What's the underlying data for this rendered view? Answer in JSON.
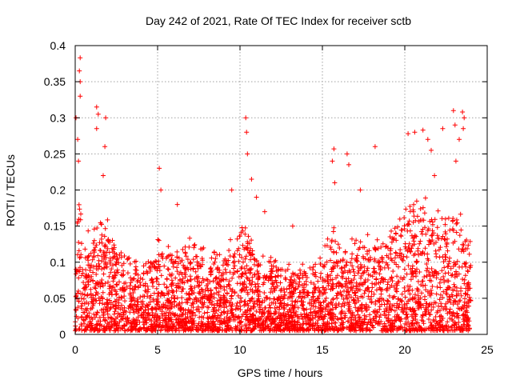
{
  "chart_data": {
    "type": "scatter",
    "title": "Day 242 of 2021, Rate Of TEC Index for receiver sctb",
    "xlabel": "GPS time / hours",
    "ylabel": "ROTI / TECUs",
    "xlim": [
      0,
      25
    ],
    "ylim": [
      0,
      0.4
    ],
    "x_ticks": [
      0,
      5,
      10,
      15,
      20,
      25
    ],
    "x_tick_labels": [
      "0",
      "5",
      "10",
      "15",
      "20",
      "25"
    ],
    "y_ticks": [
      0,
      0.05,
      0.1,
      0.15,
      0.2,
      0.25,
      0.3,
      0.35,
      0.4
    ],
    "y_tick_labels": [
      "0",
      "0.05",
      "0.1",
      "0.15",
      "0.2",
      "0.25",
      "0.3",
      "0.35",
      "0.4"
    ],
    "grid": true,
    "legend": "none",
    "marker": "plus",
    "color": "#ff0000",
    "envelope": {
      "x": [
        0,
        0.25,
        0.5,
        1,
        1.5,
        2,
        3,
        4,
        5,
        6,
        7,
        8,
        9,
        10,
        10.5,
        11,
        12,
        13,
        14,
        15,
        15.5,
        16,
        17,
        18,
        19,
        20,
        21,
        21.5,
        22,
        23,
        23.5,
        24
      ],
      "typical_max": [
        0.12,
        0.2,
        0.15,
        0.12,
        0.16,
        0.14,
        0.1,
        0.09,
        0.12,
        0.11,
        0.13,
        0.1,
        0.11,
        0.14,
        0.15,
        0.11,
        0.1,
        0.09,
        0.09,
        0.1,
        0.14,
        0.12,
        0.12,
        0.13,
        0.13,
        0.17,
        0.18,
        0.17,
        0.15,
        0.16,
        0.15,
        0.12
      ]
    },
    "peaks": [
      {
        "x": 0.3,
        "y": 0.383
      },
      {
        "x": 0.25,
        "y": 0.365
      },
      {
        "x": 0.3,
        "y": 0.35
      },
      {
        "x": 0.3,
        "y": 0.33
      },
      {
        "x": 0.05,
        "y": 0.3
      },
      {
        "x": 0.15,
        "y": 0.27
      },
      {
        "x": 0.2,
        "y": 0.24
      },
      {
        "x": 1.3,
        "y": 0.315
      },
      {
        "x": 1.4,
        "y": 0.305
      },
      {
        "x": 1.3,
        "y": 0.285
      },
      {
        "x": 1.85,
        "y": 0.3
      },
      {
        "x": 1.8,
        "y": 0.26
      },
      {
        "x": 1.7,
        "y": 0.22
      },
      {
        "x": 5.1,
        "y": 0.23
      },
      {
        "x": 5.2,
        "y": 0.2
      },
      {
        "x": 6.2,
        "y": 0.18
      },
      {
        "x": 9.5,
        "y": 0.2
      },
      {
        "x": 10.35,
        "y": 0.3
      },
      {
        "x": 10.4,
        "y": 0.28
      },
      {
        "x": 10.45,
        "y": 0.25
      },
      {
        "x": 10.7,
        "y": 0.215
      },
      {
        "x": 11.0,
        "y": 0.19
      },
      {
        "x": 11.5,
        "y": 0.17
      },
      {
        "x": 13.2,
        "y": 0.15
      },
      {
        "x": 15.7,
        "y": 0.257
      },
      {
        "x": 15.6,
        "y": 0.24
      },
      {
        "x": 15.75,
        "y": 0.21
      },
      {
        "x": 16.5,
        "y": 0.25
      },
      {
        "x": 16.6,
        "y": 0.235
      },
      {
        "x": 17.3,
        "y": 0.2
      },
      {
        "x": 18.2,
        "y": 0.26
      },
      {
        "x": 20.2,
        "y": 0.278
      },
      {
        "x": 20.6,
        "y": 0.28
      },
      {
        "x": 21.1,
        "y": 0.283
      },
      {
        "x": 21.4,
        "y": 0.27
      },
      {
        "x": 21.6,
        "y": 0.255
      },
      {
        "x": 21.8,
        "y": 0.22
      },
      {
        "x": 22.3,
        "y": 0.285
      },
      {
        "x": 22.95,
        "y": 0.31
      },
      {
        "x": 23.05,
        "y": 0.29
      },
      {
        "x": 23.5,
        "y": 0.308
      },
      {
        "x": 23.6,
        "y": 0.3
      },
      {
        "x": 23.55,
        "y": 0.285
      },
      {
        "x": 23.3,
        "y": 0.27
      },
      {
        "x": 23.1,
        "y": 0.24
      }
    ]
  }
}
